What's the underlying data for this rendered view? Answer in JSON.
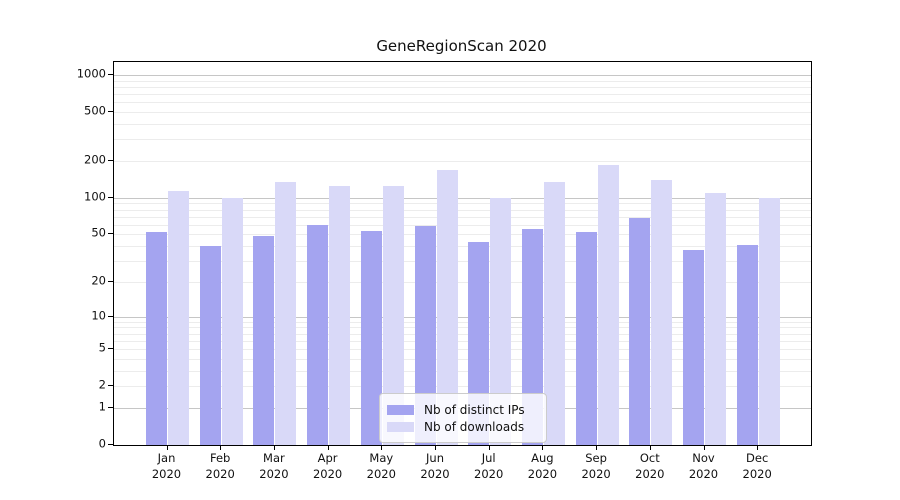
{
  "title": "GeneRegionScan 2020",
  "chart_data": {
    "type": "bar",
    "title": "GeneRegionScan 2020",
    "categories": [
      "Jan 2020",
      "Feb 2020",
      "Mar 2020",
      "Apr 2020",
      "May 2020",
      "Jun 2020",
      "Jul 2020",
      "Aug 2020",
      "Sep 2020",
      "Oct 2020",
      "Nov 2020",
      "Dec 2020"
    ],
    "series": [
      {
        "name": "Nb of distinct IPs",
        "color": "#a4a4f0",
        "values": [
          52,
          40,
          49,
          60,
          53,
          59,
          43,
          55,
          52,
          68,
          37,
          41
        ]
      },
      {
        "name": "Nb of downloads",
        "color": "#d9d9f8",
        "values": [
          113,
          100,
          135,
          124,
          124,
          170,
          100,
          134,
          185,
          140,
          110,
          100
        ]
      }
    ],
    "yscale": "log1p",
    "yticks": [
      0,
      1,
      2,
      5,
      10,
      20,
      50,
      100,
      200,
      500,
      1000
    ],
    "ylim": [
      0,
      1200
    ],
    "grid": "on",
    "legend_position": "bottom-center-inside",
    "xlabel": "",
    "ylabel": ""
  },
  "legend": {
    "items": [
      {
        "label": "Nb of distinct IPs",
        "color": "#a4a4f0"
      },
      {
        "label": "Nb of downloads",
        "color": "#d9d9f8"
      }
    ]
  },
  "colors": {
    "distinct_ips_bar": "#a4a4f0",
    "downloads_bar": "#d9d9f8",
    "grid_minor": "#ececec",
    "grid_major": "#c6c6c6",
    "axis_frame": "#000000",
    "text": "#111111",
    "legend_border": "#cccccc"
  }
}
